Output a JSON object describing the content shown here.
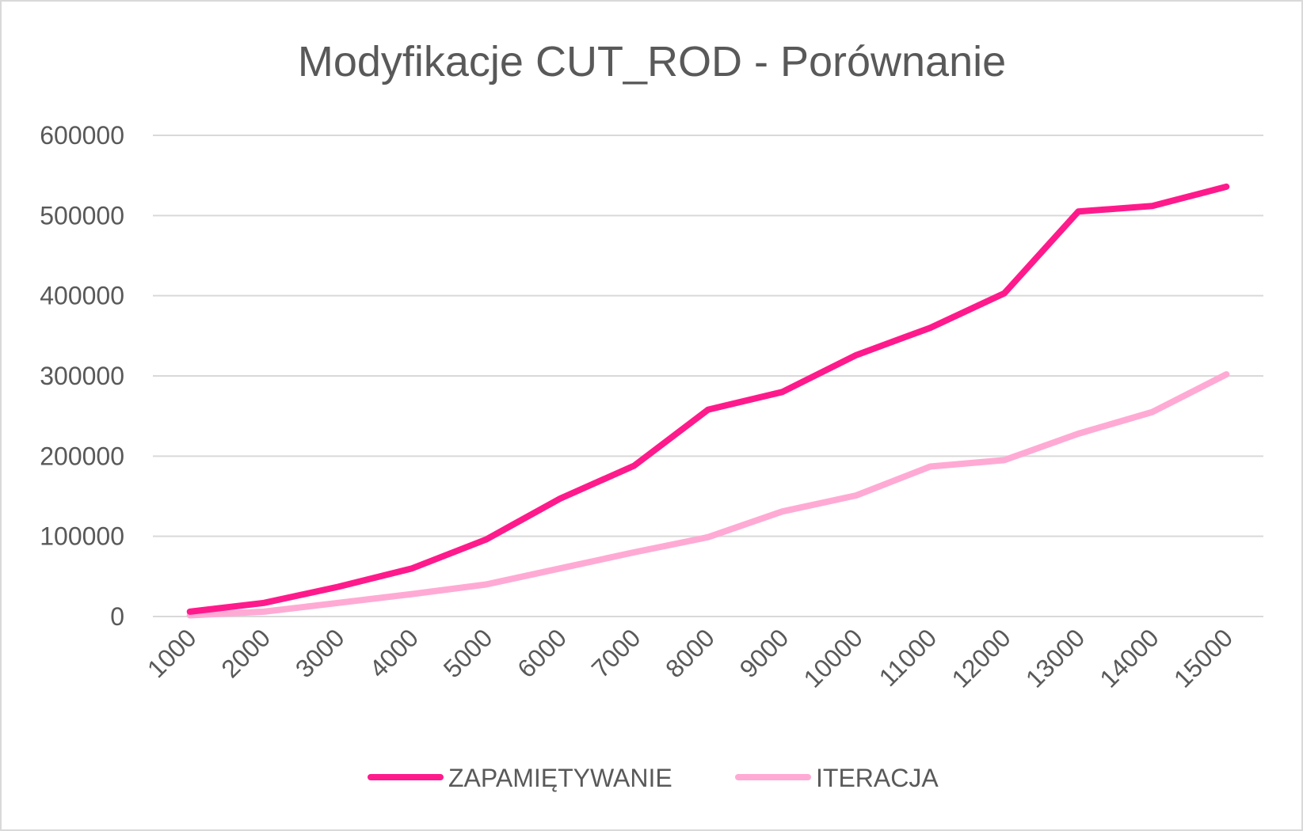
{
  "chart_data": {
    "type": "line",
    "title": "Modyfikacje CUT_ROD - Porównanie",
    "x": [
      "1000",
      "2000",
      "3000",
      "4000",
      "5000",
      "6000",
      "7000",
      "8000",
      "9000",
      "10000",
      "11000",
      "12000",
      "13000",
      "14000",
      "15000"
    ],
    "series": [
      {
        "name": "ZAPAMIĘTYWANIE",
        "color": "#ff1a8c",
        "values": [
          6000,
          17000,
          37000,
          60000,
          96000,
          147000,
          188000,
          258000,
          280000,
          326000,
          360000,
          403000,
          505000,
          512000,
          536000
        ]
      },
      {
        "name": "ITERACJA",
        "color": "#ffaad4",
        "values": [
          1500,
          6000,
          17000,
          28000,
          40000,
          60000,
          80000,
          99000,
          131000,
          151000,
          187000,
          195000,
          228000,
          255000,
          302000
        ]
      }
    ],
    "y_ticks": [
      "0",
      "100000",
      "200000",
      "300000",
      "400000",
      "500000",
      "600000"
    ],
    "ylim": [
      0,
      600000
    ],
    "grid": true,
    "legend_position": "bottom"
  }
}
